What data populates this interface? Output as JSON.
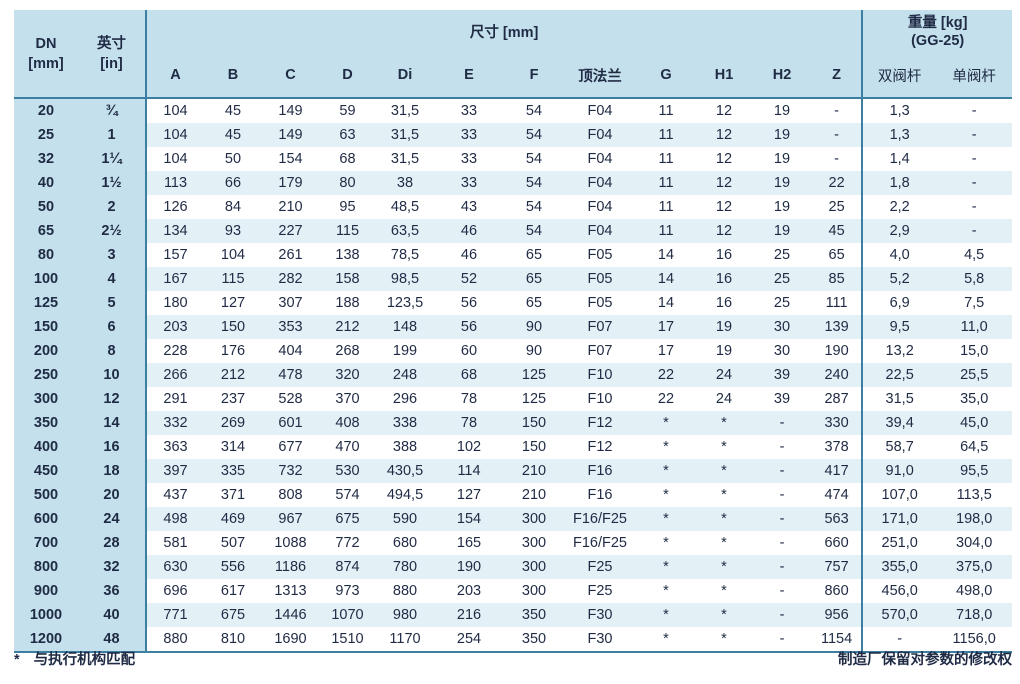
{
  "header": {
    "dn": "DN",
    "dn_unit": "[mm]",
    "inch": "英寸",
    "inch_unit": "[in]",
    "dimensions": "尺寸 [mm]",
    "weight": "重量 [kg]",
    "weight_sub": "(GG-25)",
    "columns": [
      "A",
      "B",
      "C",
      "D",
      "Di",
      "E",
      "F",
      "顶法兰",
      "G",
      "H1",
      "H2",
      "Z"
    ],
    "weight_columns": [
      "双阀杆",
      "单阀杆"
    ]
  },
  "rows": [
    [
      "20",
      "¾",
      "104",
      "45",
      "149",
      "59",
      "31,5",
      "33",
      "54",
      "F04",
      "11",
      "12",
      "19",
      "-",
      "1,3",
      "-"
    ],
    [
      "25",
      "1",
      "104",
      "45",
      "149",
      "63",
      "31,5",
      "33",
      "54",
      "F04",
      "11",
      "12",
      "19",
      "-",
      "1,3",
      "-"
    ],
    [
      "32",
      "1¼",
      "104",
      "50",
      "154",
      "68",
      "31,5",
      "33",
      "54",
      "F04",
      "11",
      "12",
      "19",
      "-",
      "1,4",
      "-"
    ],
    [
      "40",
      "1½",
      "113",
      "66",
      "179",
      "80",
      "38",
      "33",
      "54",
      "F04",
      "11",
      "12",
      "19",
      "22",
      "1,8",
      "-"
    ],
    [
      "50",
      "2",
      "126",
      "84",
      "210",
      "95",
      "48,5",
      "43",
      "54",
      "F04",
      "11",
      "12",
      "19",
      "25",
      "2,2",
      "-"
    ],
    [
      "65",
      "2½",
      "134",
      "93",
      "227",
      "115",
      "63,5",
      "46",
      "54",
      "F04",
      "11",
      "12",
      "19",
      "45",
      "2,9",
      "-"
    ],
    [
      "80",
      "3",
      "157",
      "104",
      "261",
      "138",
      "78,5",
      "46",
      "65",
      "F05",
      "14",
      "16",
      "25",
      "65",
      "4,0",
      "4,5"
    ],
    [
      "100",
      "4",
      "167",
      "115",
      "282",
      "158",
      "98,5",
      "52",
      "65",
      "F05",
      "14",
      "16",
      "25",
      "85",
      "5,2",
      "5,8"
    ],
    [
      "125",
      "5",
      "180",
      "127",
      "307",
      "188",
      "123,5",
      "56",
      "65",
      "F05",
      "14",
      "16",
      "25",
      "111",
      "6,9",
      "7,5"
    ],
    [
      "150",
      "6",
      "203",
      "150",
      "353",
      "212",
      "148",
      "56",
      "90",
      "F07",
      "17",
      "19",
      "30",
      "139",
      "9,5",
      "11,0"
    ],
    [
      "200",
      "8",
      "228",
      "176",
      "404",
      "268",
      "199",
      "60",
      "90",
      "F07",
      "17",
      "19",
      "30",
      "190",
      "13,2",
      "15,0"
    ],
    [
      "250",
      "10",
      "266",
      "212",
      "478",
      "320",
      "248",
      "68",
      "125",
      "F10",
      "22",
      "24",
      "39",
      "240",
      "22,5",
      "25,5"
    ],
    [
      "300",
      "12",
      "291",
      "237",
      "528",
      "370",
      "296",
      "78",
      "125",
      "F10",
      "22",
      "24",
      "39",
      "287",
      "31,5",
      "35,0"
    ],
    [
      "350",
      "14",
      "332",
      "269",
      "601",
      "408",
      "338",
      "78",
      "150",
      "F12",
      "*",
      "*",
      "-",
      "330",
      "39,4",
      "45,0"
    ],
    [
      "400",
      "16",
      "363",
      "314",
      "677",
      "470",
      "388",
      "102",
      "150",
      "F12",
      "*",
      "*",
      "-",
      "378",
      "58,7",
      "64,5"
    ],
    [
      "450",
      "18",
      "397",
      "335",
      "732",
      "530",
      "430,5",
      "114",
      "210",
      "F16",
      "*",
      "*",
      "-",
      "417",
      "91,0",
      "95,5"
    ],
    [
      "500",
      "20",
      "437",
      "371",
      "808",
      "574",
      "494,5",
      "127",
      "210",
      "F16",
      "*",
      "*",
      "-",
      "474",
      "107,0",
      "113,5"
    ],
    [
      "600",
      "24",
      "498",
      "469",
      "967",
      "675",
      "590",
      "154",
      "300",
      "F16/F25",
      "*",
      "*",
      "-",
      "563",
      "171,0",
      "198,0"
    ],
    [
      "700",
      "28",
      "581",
      "507",
      "1088",
      "772",
      "680",
      "165",
      "300",
      "F16/F25",
      "*",
      "*",
      "-",
      "660",
      "251,0",
      "304,0"
    ],
    [
      "800",
      "32",
      "630",
      "556",
      "1186",
      "874",
      "780",
      "190",
      "300",
      "F25",
      "*",
      "*",
      "-",
      "757",
      "355,0",
      "375,0"
    ],
    [
      "900",
      "36",
      "696",
      "617",
      "1313",
      "973",
      "880",
      "203",
      "300",
      "F25",
      "*",
      "*",
      "-",
      "860",
      "456,0",
      "498,0"
    ],
    [
      "1000",
      "40",
      "771",
      "675",
      "1446",
      "1070",
      "980",
      "216",
      "350",
      "F30",
      "*",
      "*",
      "-",
      "956",
      "570,0",
      "718,0"
    ],
    [
      "1200",
      "48",
      "880",
      "810",
      "1690",
      "1510",
      "1170",
      "254",
      "350",
      "F30",
      "*",
      "*",
      "-",
      "1154",
      "-",
      "1156,0"
    ]
  ],
  "footer": {
    "note_marker": "*",
    "note_text": "与执行机构匹配",
    "rights_text": "制造厂保留对参数的修改权"
  },
  "colors": {
    "header_bg": "#c4e0ec",
    "stripe_bg": "#e3f0f6",
    "rule": "#3d7fa3",
    "text": "#1f2a44"
  }
}
